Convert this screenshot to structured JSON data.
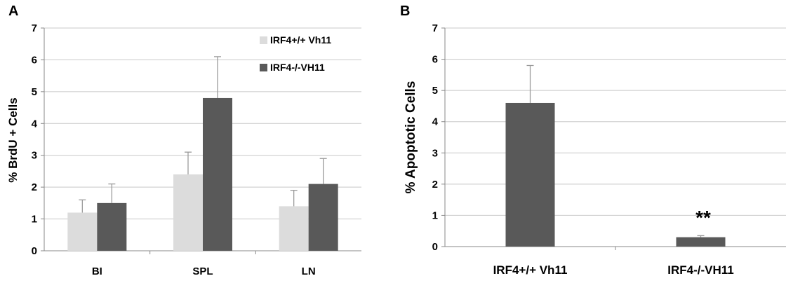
{
  "panels": {
    "a_letter": "A",
    "b_letter": "B"
  },
  "chart_data": [
    {
      "type": "bar",
      "panel": "A",
      "ylabel": "% BrdU + Cells",
      "xlabel": "",
      "ylim": [
        0,
        7
      ],
      "yticks": [
        "0",
        "1",
        "2",
        "3",
        "4",
        "5",
        "6",
        "7"
      ],
      "grid": true,
      "legend_position": "top-right",
      "categories": [
        "BI",
        "SPL",
        "LN"
      ],
      "series": [
        {
          "name": "IRF4+/+ Vh11",
          "color": "#dcdcdc",
          "values": [
            1.2,
            2.4,
            1.4
          ],
          "errors": [
            0.4,
            0.7,
            0.5
          ]
        },
        {
          "name": "IRF4-/-VH11",
          "color": "#595959",
          "values": [
            1.5,
            4.8,
            2.1
          ],
          "errors": [
            0.6,
            1.3,
            0.8
          ]
        }
      ]
    },
    {
      "type": "bar",
      "panel": "B",
      "ylabel": "% Apoptotic Cells",
      "xlabel": "",
      "ylim": [
        0,
        7
      ],
      "yticks": [
        "0",
        "1",
        "2",
        "3",
        "4",
        "5",
        "6",
        "7"
      ],
      "grid": true,
      "categories": [
        "IRF4+/+ Vh11",
        "IRF4-/-VH11"
      ],
      "series": [
        {
          "color": "#595959",
          "values": [
            4.6,
            0.3
          ],
          "errors": [
            1.2,
            0.05
          ]
        }
      ],
      "annotations": [
        {
          "category": "IRF4-/-VH11",
          "text": "**"
        }
      ]
    }
  ]
}
